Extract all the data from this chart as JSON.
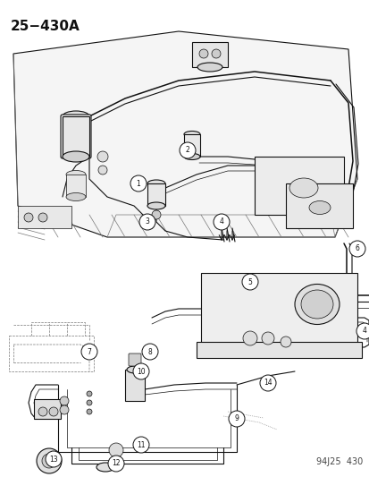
{
  "title": "25−430A",
  "footer": "94J25  430",
  "bg_color": "#ffffff",
  "fg_color": "#111111",
  "title_fontsize": 11,
  "footer_fontsize": 7,
  "fig_width": 4.14,
  "fig_height": 5.33,
  "dpi": 100
}
